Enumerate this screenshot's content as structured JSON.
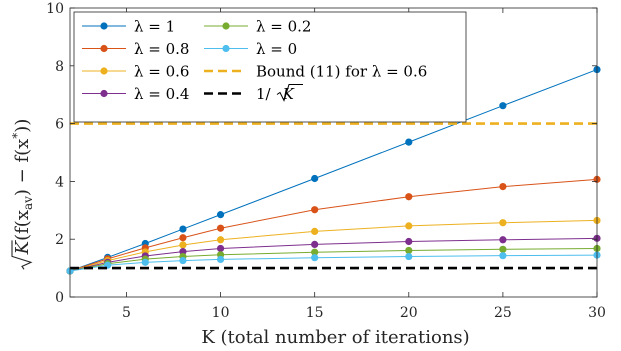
{
  "chart_data": {
    "type": "line",
    "xlabel": "K (total number of iterations)",
    "ylabel_parts": [
      "K",
      "(f(x",
      "av",
      ") − f(x",
      "*",
      "))"
    ],
    "xlim": [
      2,
      30
    ],
    "ylim": [
      0,
      10
    ],
    "xticks": [
      5,
      10,
      15,
      20,
      25,
      30
    ],
    "yticks": [
      0,
      2,
      4,
      6,
      8,
      10
    ],
    "grid": false,
    "legend_position": "top-left",
    "x": [
      2,
      4,
      6,
      8,
      10,
      15,
      20,
      25,
      30
    ],
    "series": [
      {
        "name": "λ = 1",
        "color": "#0072BD",
        "markers": true,
        "values": [
          0.9,
          1.37,
          1.85,
          2.35,
          2.85,
          4.1,
          5.36,
          6.62,
          7.87
        ]
      },
      {
        "name": "λ = 0.8",
        "color": "#D95319",
        "markers": true,
        "values": [
          0.9,
          1.32,
          1.7,
          2.05,
          2.38,
          3.02,
          3.47,
          3.82,
          4.07
        ]
      },
      {
        "name": "λ = 0.6",
        "color": "#EDB120",
        "markers": true,
        "values": [
          0.9,
          1.26,
          1.56,
          1.8,
          1.98,
          2.27,
          2.46,
          2.57,
          2.65
        ]
      },
      {
        "name": "λ = 0.4",
        "color": "#7E2F8E",
        "markers": true,
        "values": [
          0.9,
          1.2,
          1.42,
          1.57,
          1.68,
          1.82,
          1.92,
          1.98,
          2.03
        ]
      },
      {
        "name": "λ = 0.2",
        "color": "#77AC30",
        "markers": true,
        "values": [
          0.9,
          1.15,
          1.31,
          1.4,
          1.46,
          1.55,
          1.61,
          1.65,
          1.68
        ]
      },
      {
        "name": "λ = 0",
        "color": "#4DBEEE",
        "markers": true,
        "values": [
          0.9,
          1.1,
          1.2,
          1.26,
          1.3,
          1.36,
          1.4,
          1.43,
          1.45
        ]
      },
      {
        "name": "Bound (11) for λ = 0.6",
        "color": "#EDB120",
        "dashed": true,
        "constant": 6.0
      },
      {
        "name_parts": [
          "1/",
          "K"
        ],
        "color": "#000000",
        "dashed": true,
        "constant": 1.0
      }
    ]
  }
}
